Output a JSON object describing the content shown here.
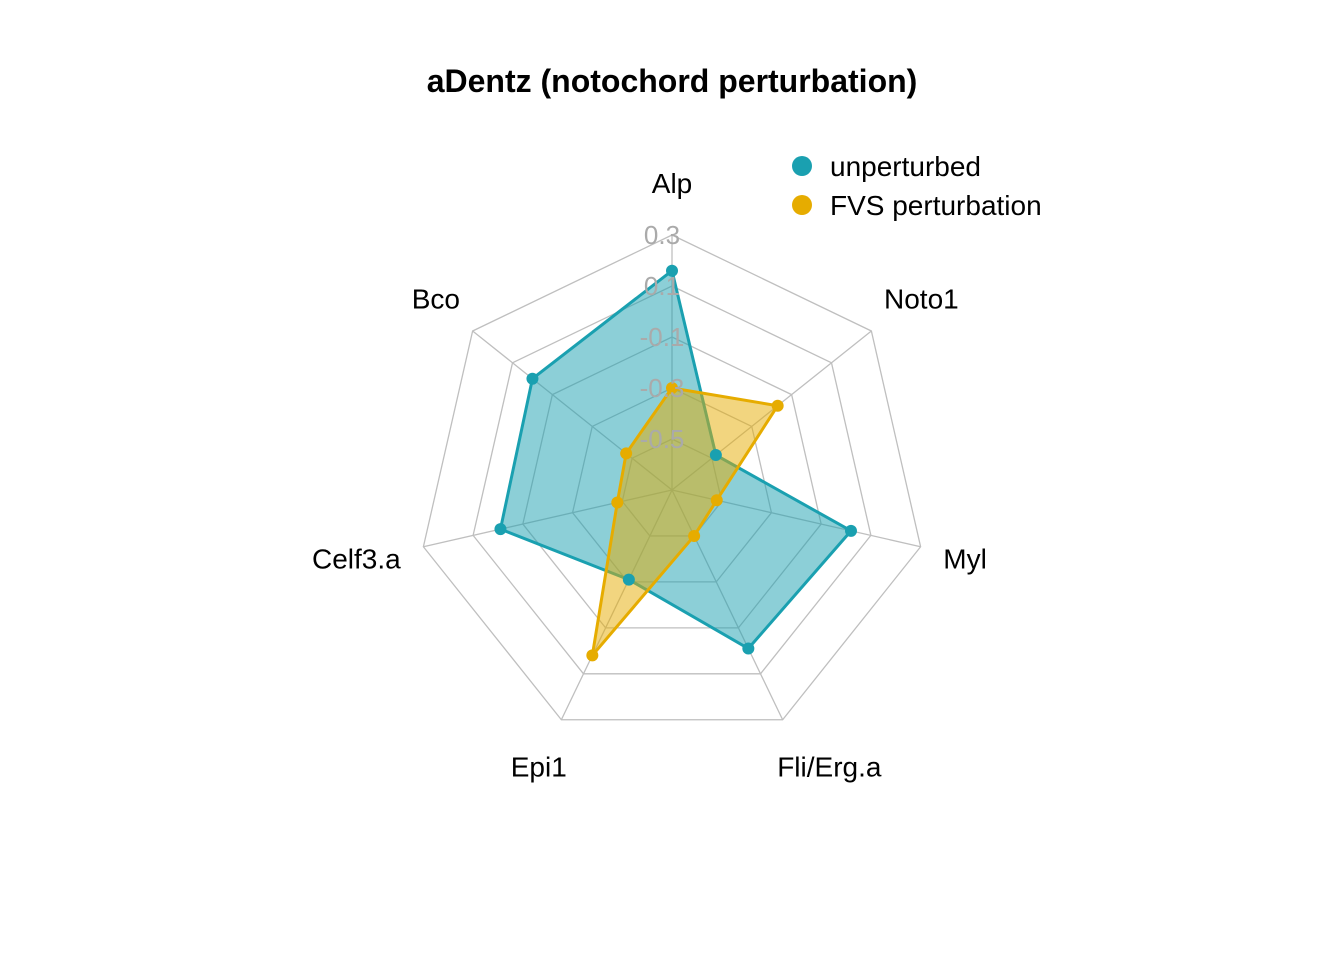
{
  "chart_data": {
    "type": "radar",
    "title": "aDentz (notochord perturbation)",
    "axes": [
      "Alp",
      "Noto1",
      "Myl",
      "Fli/Erg.a",
      "Epi1",
      "Celf3.a",
      "Bco"
    ],
    "ticks": [
      "0.3",
      "0.1",
      "-0.1",
      "-0.3",
      "-0.5"
    ],
    "rmin": -0.7,
    "rmax": 0.3,
    "grid": true,
    "legend_position": "top-right",
    "series": [
      {
        "name": "unperturbed",
        "color": "#1aa0b0",
        "fill_opacity": 0.5,
        "values": [
          0.16,
          -0.48,
          0.02,
          -0.01,
          -0.31,
          -0.01,
          0.0
        ]
      },
      {
        "name": "FVS perturbation",
        "color": "#e6ac00",
        "fill_opacity": 0.5,
        "values": [
          -0.3,
          -0.17,
          -0.52,
          -0.5,
          0.02,
          -0.48,
          -0.47
        ]
      }
    ]
  }
}
